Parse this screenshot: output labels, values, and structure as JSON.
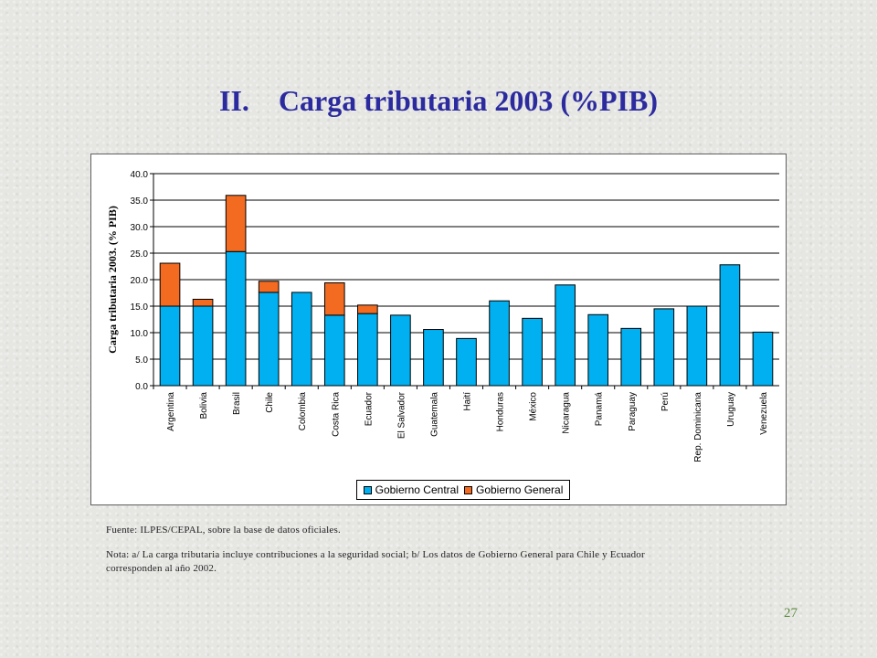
{
  "title": "II.    Carga tributaria 2003 (%PIB)",
  "footnotes": {
    "source": "Fuente: ILPES/CEPAL, sobre la base de datos oficiales.",
    "note_line1": "Nota: a/ La carga tributaria incluye contribuciones a la seguridad social; b/ Los datos de Gobierno General para Chile y Ecuador",
    "note_line2": "corresponden al año 2002."
  },
  "page_number": "27",
  "colors": {
    "central": "#00b0f0",
    "general": "#f26b21",
    "title": "#2b2b9f"
  },
  "chart_data": {
    "type": "bar",
    "stacked": true,
    "ylabel": "Carga tributaria 2003. (% PIB)",
    "ylim": [
      0,
      40
    ],
    "yticks": [
      "0.0",
      "5.0",
      "10.0",
      "15.0",
      "20.0",
      "25.0",
      "30.0",
      "35.0",
      "40.0"
    ],
    "grid": true,
    "legend_position": "bottom",
    "categories": [
      "Argentina",
      "Bolivia",
      "Brasil",
      "Chile",
      "Colombia",
      "Costa Rica",
      "Ecuador",
      "El Salvador",
      "Guatemala",
      "Haití",
      "Honduras",
      "México",
      "Nicaragua",
      "Panamá",
      "Paraguay",
      "Perú",
      "Rep. Dominicana",
      "Uruguay",
      "Venezuela"
    ],
    "series": [
      {
        "name": "Gobierno Central",
        "values": [
          15.0,
          15.0,
          25.3,
          17.6,
          17.6,
          13.3,
          13.6,
          13.3,
          10.6,
          8.9,
          16.0,
          12.7,
          19.0,
          13.4,
          10.8,
          14.5,
          15.0,
          22.8,
          10.1
        ]
      },
      {
        "name": "Gobierno General",
        "values": [
          8.1,
          1.3,
          10.6,
          2.1,
          0.0,
          6.1,
          1.6,
          0.0,
          0.0,
          0.0,
          0.0,
          0.0,
          0.0,
          0.0,
          0.0,
          0.0,
          0.0,
          0.0,
          0.0
        ]
      }
    ]
  }
}
